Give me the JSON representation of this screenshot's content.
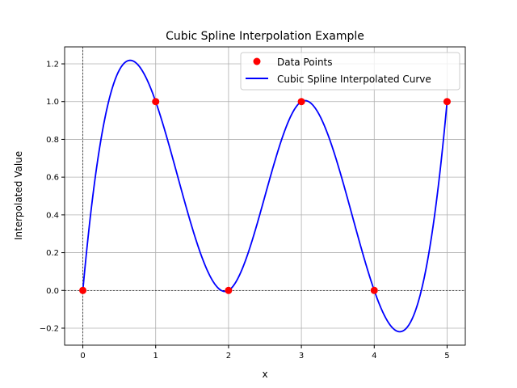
{
  "chart_data": {
    "type": "scatter+line",
    "title": "Cubic Spline Interpolation Example",
    "xlabel": "x",
    "ylabel": "Interpolated Value",
    "xlim": [
      -0.25,
      5.25
    ],
    "ylim": [
      -0.29,
      1.29
    ],
    "xticks": [
      0,
      1,
      2,
      3,
      4,
      5
    ],
    "xtick_labels": [
      "0",
      "1",
      "2",
      "3",
      "4",
      "5"
    ],
    "yticks": [
      -0.2,
      0.0,
      0.2,
      0.4,
      0.6,
      0.8,
      1.0,
      1.2
    ],
    "ytick_labels": [
      "−0.2",
      "0.0",
      "0.2",
      "0.4",
      "0.6",
      "0.8",
      "1.0",
      "1.2"
    ],
    "grid": true,
    "reference_lines": {
      "x": 0,
      "y": 0,
      "style": "dashed",
      "color": "#000000"
    },
    "legend_position": "top-right",
    "series": [
      {
        "name": "Data Points",
        "kind": "scatter",
        "color": "#ff0000",
        "x": [
          0,
          1,
          2,
          3,
          4,
          5
        ],
        "y": [
          0,
          1,
          0,
          1,
          0,
          1
        ]
      },
      {
        "name": "Cubic Spline Interpolated Curve",
        "kind": "line",
        "color": "#0000ff",
        "interpolation": "cubic spline (not-a-knot) through Data Points"
      }
    ]
  }
}
